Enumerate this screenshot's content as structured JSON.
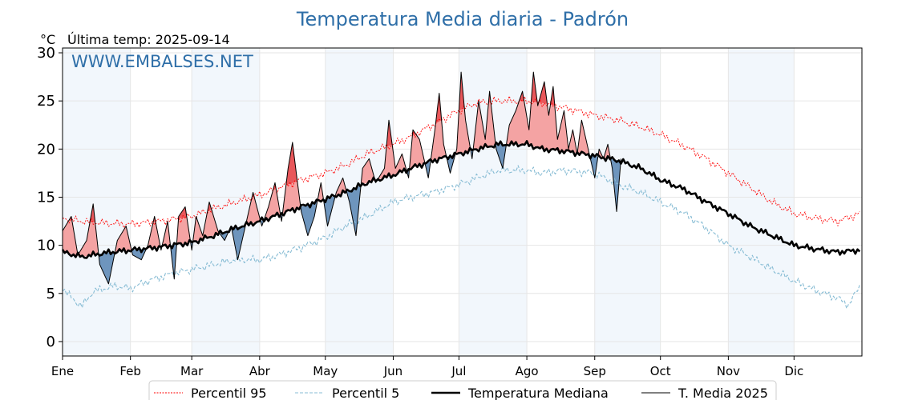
{
  "chart_data": {
    "type": "line",
    "title": "Temperatura Media diaria - Padrón",
    "unit": "°C",
    "subtitle": "Última temp: 2025-09-14",
    "watermark": "WWW.EMBALSES.NET",
    "ylim": [
      -1.5,
      30.5
    ],
    "yticks": [
      0,
      5,
      10,
      15,
      20,
      25,
      30
    ],
    "grid": true,
    "legend_placement": "bottom",
    "months": [
      "Ene",
      "Feb",
      "Mar",
      "Abr",
      "May",
      "Jun",
      "Jul",
      "Ago",
      "Sep",
      "Oct",
      "Nov",
      "Dic"
    ],
    "month_start_days": [
      1,
      32,
      60,
      91,
      121,
      152,
      182,
      213,
      244,
      274,
      305,
      335
    ],
    "colors": {
      "p95": "#ff0000",
      "p5": "#87bcd4",
      "median": "#000000",
      "current": "#000000",
      "above_fill": "#f4a3a3",
      "above_strong": "#e8575a",
      "below_fill": "#6e95bd",
      "band": "#dbe9f6"
    },
    "series": [
      {
        "name": "Percentil 95",
        "style": "dotted",
        "points": [
          [
            1,
            12.8
          ],
          [
            10,
            12.5
          ],
          [
            20,
            12.3
          ],
          [
            32,
            12.2
          ],
          [
            45,
            12.5
          ],
          [
            60,
            13.0
          ],
          [
            70,
            13.8
          ],
          [
            80,
            14.5
          ],
          [
            91,
            15.2
          ],
          [
            100,
            16.0
          ],
          [
            110,
            16.8
          ],
          [
            121,
            17.5
          ],
          [
            130,
            18.3
          ],
          [
            140,
            19.5
          ],
          [
            152,
            20.5
          ],
          [
            160,
            21.3
          ],
          [
            170,
            22.5
          ],
          [
            182,
            24.0
          ],
          [
            190,
            24.8
          ],
          [
            200,
            25.0
          ],
          [
            213,
            25.0
          ],
          [
            220,
            24.8
          ],
          [
            230,
            24.3
          ],
          [
            244,
            23.5
          ],
          [
            255,
            23.0
          ],
          [
            265,
            22.3
          ],
          [
            274,
            21.5
          ],
          [
            285,
            20.3
          ],
          [
            295,
            19.0
          ],
          [
            305,
            17.5
          ],
          [
            315,
            16.0
          ],
          [
            325,
            14.5
          ],
          [
            335,
            13.3
          ],
          [
            345,
            12.8
          ],
          [
            355,
            12.5
          ],
          [
            365,
            13.3
          ]
        ]
      },
      {
        "name": "Percentil 5",
        "style": "dashed",
        "points": [
          [
            1,
            5.6
          ],
          [
            6,
            4.3
          ],
          [
            10,
            3.7
          ],
          [
            15,
            5.2
          ],
          [
            25,
            5.8
          ],
          [
            32,
            5.5
          ],
          [
            40,
            6.3
          ],
          [
            50,
            7.0
          ],
          [
            60,
            7.5
          ],
          [
            70,
            8.0
          ],
          [
            80,
            8.5
          ],
          [
            91,
            8.5
          ],
          [
            100,
            9.0
          ],
          [
            110,
            9.8
          ],
          [
            121,
            10.8
          ],
          [
            130,
            12.0
          ],
          [
            140,
            13.0
          ],
          [
            152,
            14.5
          ],
          [
            160,
            15.0
          ],
          [
            170,
            15.5
          ],
          [
            182,
            16.3
          ],
          [
            190,
            17.0
          ],
          [
            200,
            17.8
          ],
          [
            213,
            17.8
          ],
          [
            220,
            17.5
          ],
          [
            230,
            17.8
          ],
          [
            244,
            17.5
          ],
          [
            255,
            16.3
          ],
          [
            265,
            15.5
          ],
          [
            274,
            14.5
          ],
          [
            285,
            13.3
          ],
          [
            295,
            11.8
          ],
          [
            305,
            10.0
          ],
          [
            315,
            8.8
          ],
          [
            325,
            7.5
          ],
          [
            335,
            6.3
          ],
          [
            345,
            5.3
          ],
          [
            355,
            4.5
          ],
          [
            360,
            3.8
          ],
          [
            365,
            5.8
          ]
        ]
      },
      {
        "name": "Temperatura Mediana",
        "style": "thick",
        "points": [
          [
            1,
            9.3
          ],
          [
            10,
            8.8
          ],
          [
            20,
            9.2
          ],
          [
            32,
            9.5
          ],
          [
            45,
            9.8
          ],
          [
            60,
            10.3
          ],
          [
            70,
            11.0
          ],
          [
            80,
            11.8
          ],
          [
            91,
            12.5
          ],
          [
            100,
            13.2
          ],
          [
            110,
            14.0
          ],
          [
            121,
            14.8
          ],
          [
            130,
            15.5
          ],
          [
            140,
            16.5
          ],
          [
            152,
            17.3
          ],
          [
            160,
            18.0
          ],
          [
            170,
            18.8
          ],
          [
            182,
            19.5
          ],
          [
            190,
            20.0
          ],
          [
            200,
            20.5
          ],
          [
            213,
            20.5
          ],
          [
            220,
            20.0
          ],
          [
            230,
            19.8
          ],
          [
            244,
            19.3
          ],
          [
            255,
            18.8
          ],
          [
            265,
            18.0
          ],
          [
            274,
            16.8
          ],
          [
            285,
            15.8
          ],
          [
            295,
            14.5
          ],
          [
            305,
            13.3
          ],
          [
            315,
            12.0
          ],
          [
            325,
            11.0
          ],
          [
            335,
            10.0
          ],
          [
            345,
            9.6
          ],
          [
            355,
            9.3
          ],
          [
            365,
            9.5
          ]
        ]
      },
      {
        "name": "T. Media 2025",
        "style": "thin",
        "points": [
          [
            1,
            11.5
          ],
          [
            5,
            13.0
          ],
          [
            8,
            9.0
          ],
          [
            12,
            10.5
          ],
          [
            15,
            14.3
          ],
          [
            18,
            8.0
          ],
          [
            22,
            6.0
          ],
          [
            26,
            10.5
          ],
          [
            30,
            12.0
          ],
          [
            33,
            9.0
          ],
          [
            37,
            8.5
          ],
          [
            40,
            10.0
          ],
          [
            43,
            13.0
          ],
          [
            46,
            9.5
          ],
          [
            49,
            12.5
          ],
          [
            52,
            6.5
          ],
          [
            54,
            13.0
          ],
          [
            57,
            14.0
          ],
          [
            60,
            9.5
          ],
          [
            62,
            13.0
          ],
          [
            65,
            11.0
          ],
          [
            68,
            14.5
          ],
          [
            72,
            11.5
          ],
          [
            75,
            10.5
          ],
          [
            78,
            12.0
          ],
          [
            81,
            8.5
          ],
          [
            85,
            12.5
          ],
          [
            88,
            15.5
          ],
          [
            92,
            12.0
          ],
          [
            95,
            14.0
          ],
          [
            98,
            16.5
          ],
          [
            101,
            12.5
          ],
          [
            104,
            18.0
          ],
          [
            106,
            20.7
          ],
          [
            108,
            17.0
          ],
          [
            110,
            13.5
          ],
          [
            113,
            11.0
          ],
          [
            116,
            13.0
          ],
          [
            119,
            16.5
          ],
          [
            122,
            12.0
          ],
          [
            126,
            15.5
          ],
          [
            129,
            17.0
          ],
          [
            132,
            14.5
          ],
          [
            135,
            11.0
          ],
          [
            138,
            18.0
          ],
          [
            141,
            19.0
          ],
          [
            144,
            16.5
          ],
          [
            148,
            18.0
          ],
          [
            150,
            23.0
          ],
          [
            153,
            18.0
          ],
          [
            156,
            19.5
          ],
          [
            159,
            17.0
          ],
          [
            161,
            22.0
          ],
          [
            164,
            21.0
          ],
          [
            168,
            17.0
          ],
          [
            171,
            22.0
          ],
          [
            173,
            25.8
          ],
          [
            175,
            20.5
          ],
          [
            178,
            17.5
          ],
          [
            181,
            20.0
          ],
          [
            183,
            28.0
          ],
          [
            185,
            23.0
          ],
          [
            188,
            19.0
          ],
          [
            191,
            25.0
          ],
          [
            194,
            21.0
          ],
          [
            196,
            26.0
          ],
          [
            199,
            20.0
          ],
          [
            202,
            18.0
          ],
          [
            205,
            22.5
          ],
          [
            208,
            24.0
          ],
          [
            211,
            26.0
          ],
          [
            214,
            22.0
          ],
          [
            216,
            28.0
          ],
          [
            218,
            24.5
          ],
          [
            221,
            27.0
          ],
          [
            223,
            23.5
          ],
          [
            225,
            26.5
          ],
          [
            227,
            21.0
          ],
          [
            230,
            24.0
          ],
          [
            232,
            20.0
          ],
          [
            234,
            22.0
          ],
          [
            236,
            19.5
          ],
          [
            238,
            23.0
          ],
          [
            241,
            20.0
          ],
          [
            244,
            17.0
          ],
          [
            246,
            20.0
          ],
          [
            248,
            19.0
          ],
          [
            250,
            20.5
          ],
          [
            252,
            18.0
          ],
          [
            254,
            13.5
          ],
          [
            256,
            19.0
          ]
        ]
      }
    ]
  }
}
